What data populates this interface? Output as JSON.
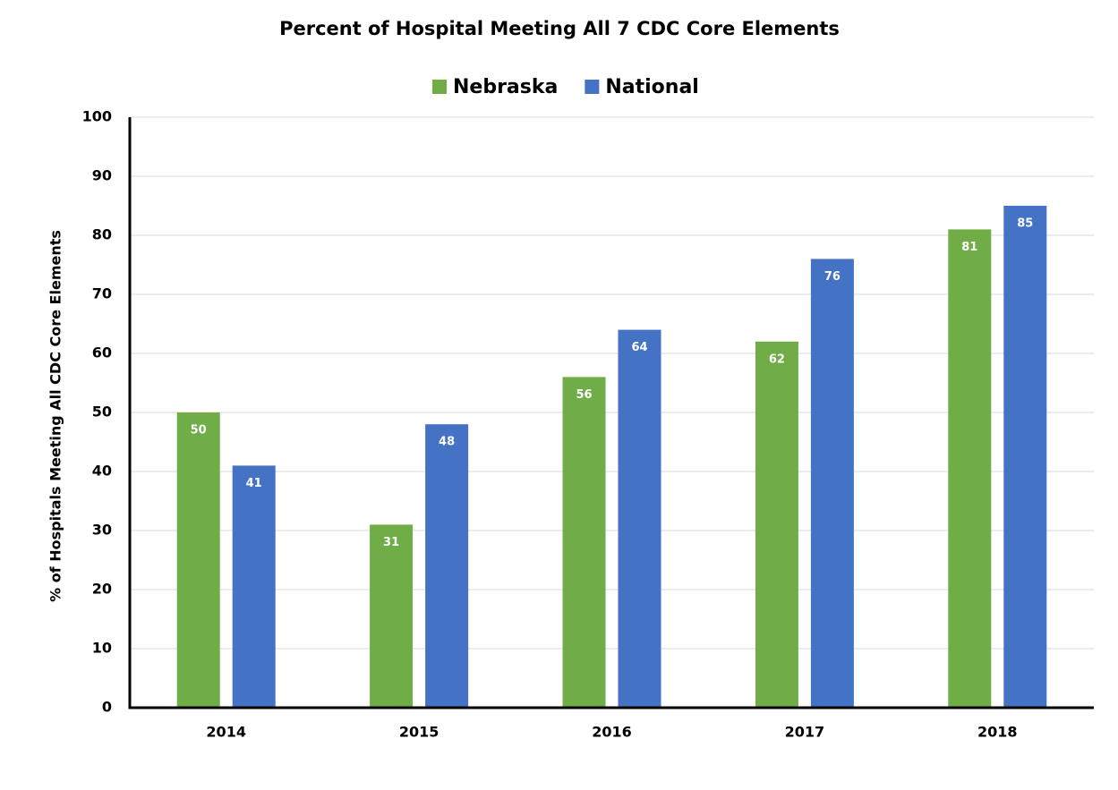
{
  "chart_data": {
    "type": "bar",
    "title": "Percent of Hospital Meeting All 7 CDC Core Elements",
    "y_label": "% of Hospitals Meeting All CDC Core Elements",
    "categories": [
      "2014",
      "2015",
      "2016",
      "2017",
      "2018"
    ],
    "series": [
      {
        "name": "Nebraska",
        "color": "#70ad47",
        "values": [
          50,
          31,
          56,
          62,
          81
        ]
      },
      {
        "name": "National",
        "color": "#4472c4",
        "values": [
          41,
          48,
          64,
          76,
          85
        ]
      }
    ],
    "ylim": [
      0,
      100
    ],
    "yticks": [
      0,
      10,
      20,
      30,
      40,
      50,
      60,
      70,
      80,
      90,
      100
    ],
    "grid": true,
    "legend": "top",
    "data_labels": true
  }
}
